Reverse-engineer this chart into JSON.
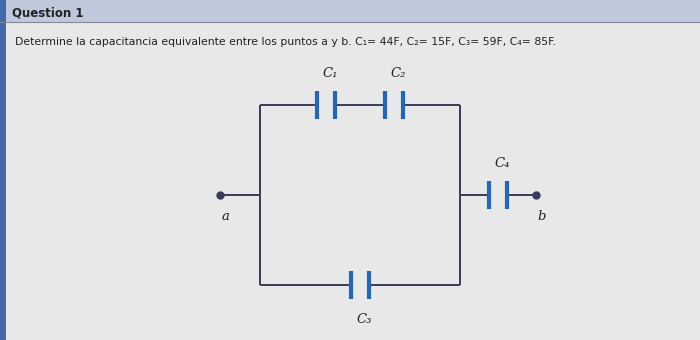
{
  "title_text": "Question 1",
  "problem_text": "Determine la capacitancia equivalente entre los puntos a y b. C₁= 44F, C₂= 15F, C₃= 59F, C₄= 85F.",
  "bg_color": "#e8e8e8",
  "title_bg": "#b0b8cc",
  "line_color": "#3a3a5a",
  "cap_color": "#2266bb",
  "text_color": "#222222",
  "C1_label": "C₁",
  "C2_label": "C₂",
  "C3_label": "C₃",
  "C4_label": "C₄",
  "a_label": "a",
  "b_label": "b"
}
